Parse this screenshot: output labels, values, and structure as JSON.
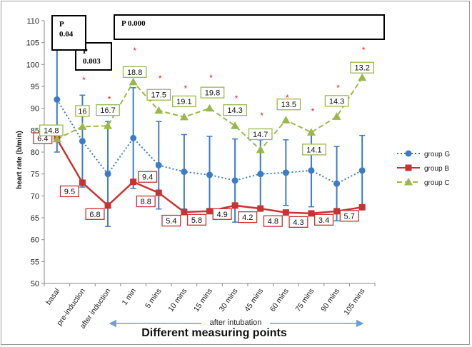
{
  "chart_data": {
    "type": "line",
    "ylabel": "heart rate (b/min)",
    "xlabel": "Different measuring points",
    "ylim": [
      50,
      110
    ],
    "yticks": [
      50,
      55,
      60,
      65,
      70,
      75,
      80,
      85,
      90,
      95,
      100,
      105,
      110
    ],
    "categories": [
      "basal",
      "pre-induction",
      "after induction",
      "1 min",
      "5 mins",
      "10 mins",
      "15 mins",
      "30 mins",
      "45 mins",
      "60 mins",
      "75 mins",
      "90 mins",
      "105 mins"
    ],
    "span_label": "after intubation",
    "legend_position": "right",
    "grid": false,
    "series": [
      {
        "name": "group G",
        "color": "#3a7cc8",
        "style": "dotted",
        "marker": "circle",
        "values": [
          92,
          82.5,
          75,
          83.2,
          77,
          75.5,
          74.8,
          73.5,
          75,
          75.3,
          75.8,
          72.8,
          75.8
        ],
        "errors": [
          12,
          10.5,
          12,
          11.5,
          10,
          8.5,
          8.8,
          9.5,
          7.8,
          7.5,
          8.3,
          8.5,
          8
        ]
      },
      {
        "name": "group B",
        "color": "#c83232",
        "style": "solid",
        "marker": "square",
        "values": [
          83,
          73,
          67.8,
          73.2,
          70.7,
          66.3,
          66.5,
          67.8,
          67.1,
          66.2,
          66.0,
          66.5,
          67.4
        ],
        "labels": [
          "6.4",
          "9.5",
          "6.8",
          "9.4",
          "8.8",
          "5.4",
          "5.8",
          "4.9",
          "4.2",
          "4.8",
          "4.3",
          "3.4",
          "5.7"
        ]
      },
      {
        "name": "group C",
        "color": "#9ab84a",
        "style": "dashed",
        "marker": "triangle",
        "values": [
          83,
          85.8,
          86,
          96,
          89.5,
          88,
          90,
          86,
          80.5,
          87.3,
          84.5,
          88.1,
          97
        ],
        "labels": [
          "14.8",
          "16",
          "16.7",
          "18.8",
          "17.5",
          "19.1",
          "19.8",
          "14.3",
          "14.7",
          "13.5",
          "14.1",
          "14.3",
          "13.2"
        ]
      }
    ],
    "p_values": [
      "P 0.04",
      "P 0.003",
      "P 0.000"
    ],
    "asterisk": "*"
  }
}
